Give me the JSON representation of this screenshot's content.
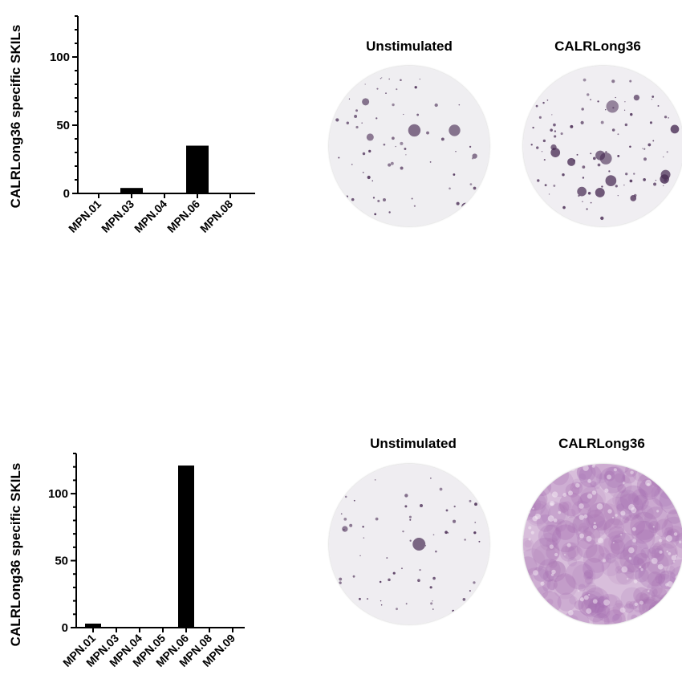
{
  "panels": [
    {
      "ylabel": "CALRLong36  specific SKILs",
      "well_titles": [
        "Unstimulated",
        "CALRLong36"
      ]
    },
    {
      "ylabel": "CALRLong36  specific SKILs",
      "well_titles": [
        "Unstimulated",
        "CALRLong36"
      ]
    }
  ],
  "chart_data": [
    {
      "type": "bar",
      "categories": [
        "MPN.01",
        "MPN.03",
        "MPN.04",
        "MPN.06",
        "MPN.08"
      ],
      "values": [
        0,
        4,
        0,
        35,
        0
      ],
      "ylabel": "CALRLong36  specific SKILs",
      "ylim": [
        0,
        130
      ],
      "yticks": [
        0,
        50,
        100
      ],
      "grid": false,
      "color": "#000000"
    },
    {
      "type": "bar",
      "categories": [
        "MPN.01",
        "MPN.03",
        "MPN.04",
        "MPN.05",
        "MPN.06",
        "MPN.08",
        "MPN.09"
      ],
      "values": [
        3,
        0,
        0,
        0,
        121,
        0,
        0
      ],
      "ylabel": "CALRLong36  specific SKILs",
      "ylim": [
        0,
        130
      ],
      "yticks": [
        0,
        50,
        100
      ],
      "grid": false,
      "color": "#000000"
    }
  ],
  "well_images": [
    {
      "name": "top-unstimulated",
      "spot_density": "sparse",
      "background": "#efeef1"
    },
    {
      "name": "top-calrlong36",
      "spot_density": "moderate",
      "background": "#f0eef2"
    },
    {
      "name": "bottom-unstimulated",
      "spot_density": "sparse",
      "background": "#efedf1"
    },
    {
      "name": "bottom-calrlong36",
      "spot_density": "confluent",
      "background": "#d8bedb"
    }
  ]
}
